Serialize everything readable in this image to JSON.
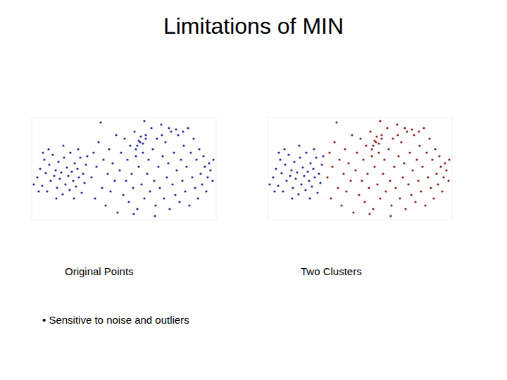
{
  "title": "Limitations of MIN",
  "notes": [
    "• Sensitive to noise and outliers"
  ],
  "chart_data": [
    {
      "type": "scatter",
      "xlabel": "Original Points",
      "xlim": [
        0,
        262
      ],
      "ylim": [
        0,
        145
      ],
      "tick_labels": false,
      "series": [
        {
          "color": "#26269e",
          "marker": "circle",
          "x": [
            8,
            12,
            15,
            18,
            20,
            22,
            25,
            27,
            30,
            32,
            34,
            36,
            38,
            40,
            42,
            44,
            46,
            48,
            50,
            52,
            54,
            55,
            57,
            59,
            61,
            63,
            65,
            67,
            69,
            71,
            73,
            75,
            77,
            3,
            10,
            24,
            45,
            60,
            35,
            79,
            66,
            16,
            85,
            88,
            90,
            92,
            95,
            98,
            100,
            102,
            105,
            108,
            110,
            112,
            115,
            118,
            120,
            122,
            125,
            127,
            130,
            132,
            134,
            136,
            138,
            140,
            142,
            144,
            146,
            148,
            150,
            152,
            154,
            156,
            158,
            160,
            162,
            164,
            166,
            168,
            170,
            172,
            174,
            176,
            178,
            180,
            182,
            184,
            186,
            188,
            190,
            192,
            194,
            196,
            198,
            200,
            202,
            204,
            206,
            208,
            210,
            212,
            214,
            216,
            218,
            220,
            222,
            224,
            226,
            228,
            230,
            232,
            234,
            236,
            238,
            240,
            242,
            244,
            246,
            248,
            250,
            252,
            254,
            257,
            258,
            160,
            185,
            205,
            145,
            175,
            195,
            215,
            152,
            155,
            158,
            150,
            162,
            148
          ],
          "values": [
            60,
            72,
            48,
            85,
            66,
            40,
            78,
            55,
            92,
            62,
            70,
            45,
            82,
            58,
            67,
            36,
            88,
            50,
            74,
            62,
            42,
            95,
            68,
            55,
            80,
            47,
            72,
            60,
            88,
            38,
            65,
            52,
            78,
            50,
            40,
            100,
            105,
            30,
            30,
            90,
            100,
            95,
            60,
            95,
            30,
            75,
            110,
            138,
            45,
            85,
            20,
            65,
            100,
            40,
            80,
            55,
            120,
            10,
            70,
            95,
            35,
            115,
            55,
            85,
            25,
            105,
            65,
            45,
            125,
            90,
            15,
            75,
            110,
            50,
            95,
            30,
            120,
            65,
            85,
            40,
            130,
            100,
            55,
            20,
            115,
            75,
            45,
            135,
            90,
            30,
            110,
            60,
            80,
            15,
            125,
            50,
            95,
            35,
            70,
            120,
            25,
            85,
            55,
            105,
            40,
            75,
            130,
            20,
            95,
            60,
            115,
            45,
            85,
            30,
            100,
            65,
            50,
            90,
            75,
            40,
            60,
            80,
            70,
            55,
            85,
            140,
            120,
            128,
            8,
            5,
            130,
            125,
            112,
            118,
            108,
            105,
            115,
            100
          ]
        }
      ]
    },
    {
      "type": "scatter",
      "xlabel": "Two Clusters",
      "xlim": [
        0,
        262
      ],
      "ylim": [
        0,
        145
      ],
      "tick_labels": false,
      "series": [
        {
          "color": "#26269e",
          "marker": "circle",
          "x": [
            8,
            12,
            15,
            18,
            20,
            22,
            25,
            27,
            30,
            32,
            34,
            36,
            38,
            40,
            42,
            44,
            46,
            48,
            50,
            52,
            54,
            55,
            57,
            59,
            61,
            63,
            65,
            67,
            69,
            71,
            73,
            75,
            77,
            3,
            10,
            24,
            45,
            60,
            35,
            79,
            66,
            16
          ],
          "values": [
            60,
            72,
            48,
            85,
            66,
            40,
            78,
            55,
            92,
            62,
            70,
            45,
            82,
            58,
            67,
            36,
            88,
            50,
            74,
            62,
            42,
            95,
            68,
            55,
            80,
            47,
            72,
            60,
            88,
            38,
            65,
            52,
            78,
            50,
            40,
            100,
            105,
            30,
            30,
            90,
            100,
            95
          ]
        },
        {
          "color": "#8b1c1c",
          "marker": "circle",
          "x": [
            85,
            88,
            90,
            92,
            95,
            98,
            100,
            102,
            105,
            108,
            110,
            112,
            115,
            118,
            120,
            122,
            125,
            127,
            130,
            132,
            134,
            136,
            138,
            140,
            142,
            144,
            146,
            148,
            150,
            152,
            154,
            156,
            158,
            160,
            162,
            164,
            166,
            168,
            170,
            172,
            174,
            176,
            178,
            180,
            182,
            184,
            186,
            188,
            190,
            192,
            194,
            196,
            198,
            200,
            202,
            204,
            206,
            208,
            210,
            212,
            214,
            216,
            218,
            220,
            222,
            224,
            226,
            228,
            230,
            232,
            234,
            236,
            238,
            240,
            242,
            244,
            246,
            248,
            250,
            252,
            254,
            257,
            258,
            160,
            185,
            205,
            145,
            175,
            195,
            215,
            152,
            155,
            158,
            150,
            162,
            148
          ],
          "values": [
            60,
            95,
            30,
            75,
            110,
            138,
            45,
            85,
            20,
            65,
            100,
            40,
            80,
            55,
            120,
            10,
            70,
            95,
            35,
            115,
            55,
            85,
            25,
            105,
            65,
            45,
            125,
            90,
            15,
            75,
            110,
            50,
            95,
            30,
            120,
            65,
            85,
            40,
            130,
            100,
            55,
            20,
            115,
            75,
            45,
            135,
            90,
            30,
            110,
            60,
            80,
            15,
            125,
            50,
            95,
            35,
            70,
            120,
            25,
            85,
            55,
            105,
            40,
            75,
            130,
            20,
            95,
            60,
            115,
            45,
            85,
            30,
            100,
            65,
            50,
            90,
            75,
            40,
            60,
            80,
            70,
            55,
            85,
            140,
            120,
            128,
            8,
            5,
            130,
            125,
            112,
            118,
            108,
            105,
            115,
            100
          ]
        }
      ]
    }
  ]
}
